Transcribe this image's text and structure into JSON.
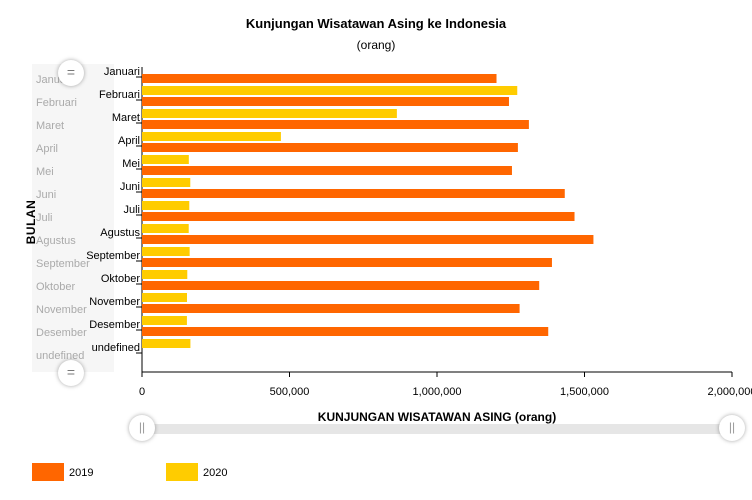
{
  "chart_data": {
    "type": "bar",
    "orientation": "horizontal",
    "title": "Kunjungan Wisatawan Asing ke Indonesia",
    "subtitle": "(orang)",
    "xlabel": "KUNJUNGAN WISATAWAN ASING (orang)",
    "ylabel": "BULAN",
    "categories": [
      "Januari",
      "Februari",
      "Maret",
      "April",
      "Mei",
      "Juni",
      "Juli",
      "Agustus",
      "September",
      "Oktober",
      "November",
      "Desember",
      "undefined"
    ],
    "series": [
      {
        "name": "2019",
        "color": "#ff6600",
        "values": [
          1201735,
          1243996,
          1311509,
          1274231,
          1254093,
          1433095,
          1466174,
          1530268,
          1389659,
          1346434,
          1280000,
          1377067,
          null
        ]
      },
      {
        "name": "2020",
        "color": "#ffcc00",
        "values": [
          1272083,
          863979,
          470898,
          158718,
          163646,
          160298,
          158366,
          161549,
          153498,
          152508,
          152262,
          164079,
          null
        ]
      }
    ],
    "xlim": [
      0,
      2000000
    ],
    "xticks": [
      0,
      500000,
      1000000,
      1500000,
      2000000
    ],
    "xtick_labels": [
      "0",
      "500,000",
      "1,000,000",
      "1,500,000",
      "2,000,000"
    ],
    "grid": false,
    "legend_position": "bottom-left"
  },
  "scroll_labels": [
    "Januari",
    "Februari",
    "Maret",
    "April",
    "Mei",
    "Juni",
    "Juli",
    "Agustus",
    "September",
    "Oktober",
    "November",
    "Desember",
    "undefined"
  ],
  "icons": {
    "handle_vertical": "drag-handle-icon",
    "handle_horizontal": "drag-handle-icon"
  },
  "handle_glyphs": {
    "vertical": "=",
    "horizontal": "||"
  }
}
